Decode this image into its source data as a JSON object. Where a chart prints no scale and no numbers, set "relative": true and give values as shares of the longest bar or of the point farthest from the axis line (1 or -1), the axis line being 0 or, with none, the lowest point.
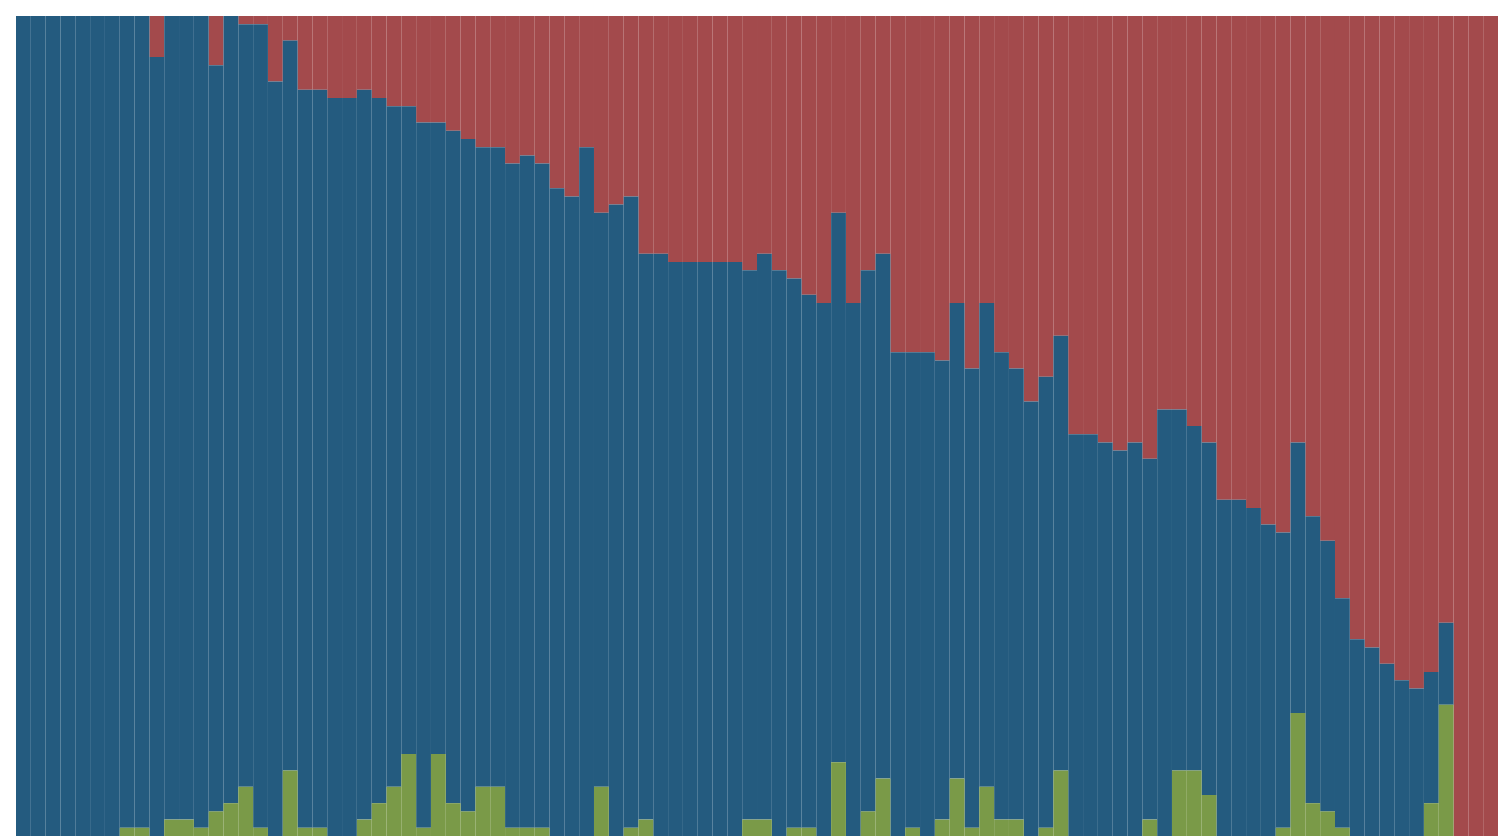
{
  "chart_data": {
    "type": "bar",
    "stacked": true,
    "relative": true,
    "categories": [
      null,
      null,
      null,
      null,
      null,
      null,
      null,
      null,
      null,
      null,
      null,
      null,
      null,
      null,
      null,
      null,
      null,
      null,
      null,
      null,
      null,
      null,
      null,
      null,
      null,
      null,
      null,
      null,
      null,
      null,
      null,
      null,
      null,
      null,
      null,
      null,
      null,
      null,
      null,
      null,
      null,
      null,
      null,
      null,
      null,
      null,
      null,
      null,
      null,
      null,
      null,
      null,
      null,
      null,
      null,
      null,
      null,
      null,
      null,
      null,
      null,
      null,
      null,
      null,
      null,
      null,
      null,
      null,
      null,
      null,
      null,
      null,
      null,
      null,
      null,
      null,
      null,
      null,
      null,
      null,
      null,
      null,
      null,
      null,
      null,
      null,
      null,
      null,
      null,
      null,
      null,
      null,
      null,
      null,
      null,
      null,
      null,
      null,
      null,
      null
    ],
    "series": [
      {
        "color": "#7a9a48",
        "values": [
          0,
          0,
          0,
          0,
          0,
          0,
          0,
          0.01,
          0.01,
          0,
          0.02,
          0.02,
          0.01,
          0.03,
          0.04,
          0.06,
          0.01,
          0,
          0.08,
          0.01,
          0.01,
          0,
          0,
          0.02,
          0.04,
          0.06,
          0.1,
          0.01,
          0.1,
          0.04,
          0.03,
          0.06,
          0.06,
          0.01,
          0.01,
          0.01,
          0,
          0,
          0,
          0.06,
          0,
          0.01,
          0.02,
          0,
          0,
          0,
          0,
          0,
          0,
          0.02,
          0.02,
          0,
          0.01,
          0.01,
          0,
          0.09,
          0,
          0.03,
          0.07,
          0,
          0.01,
          0,
          0.02,
          0.07,
          0.01,
          0.06,
          0.02,
          0.02,
          0,
          0.01,
          0.08,
          0,
          0,
          0,
          0,
          0,
          0.02,
          0,
          0.08,
          0.08,
          0.05,
          0,
          0,
          0,
          0,
          0.01,
          0.15,
          0.04,
          0.03,
          0.01,
          0,
          0,
          0,
          0,
          0,
          0.04,
          0.16,
          0,
          0,
          0
        ]
      },
      {
        "color": "#245b7f",
        "values": [
          1,
          1,
          1,
          1,
          1,
          1,
          1,
          0.99,
          0.99,
          0.95,
          0.98,
          0.98,
          0.99,
          0.91,
          0.96,
          0.93,
          0.98,
          0.92,
          0.89,
          0.9,
          0.9,
          0.9,
          0.9,
          0.89,
          0.86,
          0.83,
          0.79,
          0.86,
          0.77,
          0.82,
          0.82,
          0.78,
          0.78,
          0.81,
          0.82,
          0.81,
          0.79,
          0.78,
          0.84,
          0.7,
          0.77,
          0.77,
          0.69,
          0.71,
          0.7,
          0.7,
          0.7,
          0.7,
          0.7,
          0.67,
          0.69,
          0.69,
          0.67,
          0.65,
          0.65,
          0.67,
          0.65,
          0.66,
          0.64,
          0.59,
          0.58,
          0.59,
          0.56,
          0.58,
          0.56,
          0.59,
          0.57,
          0.55,
          0.53,
          0.55,
          0.53,
          0.49,
          0.49,
          0.48,
          0.47,
          0.48,
          0.44,
          0.52,
          0.44,
          0.42,
          0.43,
          0.41,
          0.41,
          0.4,
          0.38,
          0.36,
          0.33,
          0.35,
          0.33,
          0.28,
          0.24,
          0.23,
          0.21,
          0.19,
          0.18,
          0.16,
          0.1,
          0,
          0,
          0
        ]
      },
      {
        "color": "#a34a4c",
        "values": [
          0,
          0,
          0,
          0,
          0,
          0,
          0,
          0,
          0,
          0.05,
          0,
          0,
          0,
          0.06,
          0,
          0.01,
          0.01,
          0.08,
          0.03,
          0.09,
          0.09,
          0.1,
          0.1,
          0.09,
          0.1,
          0.11,
          0.11,
          0.13,
          0.13,
          0.14,
          0.15,
          0.16,
          0.16,
          0.18,
          0.17,
          0.18,
          0.21,
          0.22,
          0.16,
          0.24,
          0.23,
          0.22,
          0.29,
          0.29,
          0.3,
          0.3,
          0.3,
          0.3,
          0.3,
          0.31,
          0.29,
          0.31,
          0.32,
          0.34,
          0.35,
          0.24,
          0.35,
          0.31,
          0.29,
          0.41,
          0.41,
          0.41,
          0.42,
          0.35,
          0.43,
          0.35,
          0.41,
          0.43,
          0.47,
          0.44,
          0.39,
          0.51,
          0.51,
          0.52,
          0.53,
          0.52,
          0.54,
          0.48,
          0.48,
          0.5,
          0.52,
          0.59,
          0.59,
          0.6,
          0.62,
          0.63,
          0.52,
          0.61,
          0.64,
          0.71,
          0.76,
          0.77,
          0.79,
          0.81,
          0.82,
          0.8,
          0.74,
          1,
          1,
          1
        ]
      }
    ]
  }
}
